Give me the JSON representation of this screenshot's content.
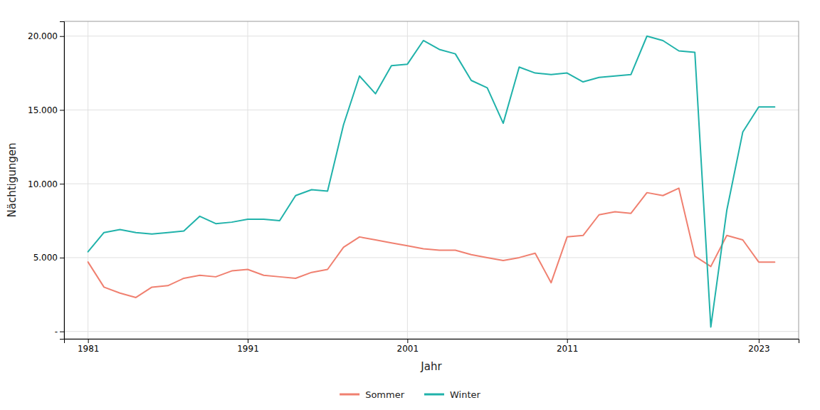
{
  "chart_data": {
    "type": "line",
    "xlabel": "Jahr",
    "ylabel": "Nächtigungen",
    "x": [
      1981,
      1982,
      1983,
      1984,
      1985,
      1986,
      1987,
      1988,
      1989,
      1990,
      1991,
      1992,
      1993,
      1994,
      1995,
      1996,
      1997,
      1998,
      1999,
      2000,
      2001,
      2002,
      2003,
      2004,
      2005,
      2006,
      2007,
      2008,
      2009,
      2010,
      2011,
      2012,
      2013,
      2014,
      2015,
      2016,
      2017,
      2018,
      2019,
      2020,
      2021,
      2022,
      2023,
      2024
    ],
    "series": [
      {
        "name": "Sommer",
        "color": "#F08070",
        "values": [
          4700,
          3000,
          2600,
          2300,
          3000,
          3100,
          3600,
          3800,
          3700,
          4100,
          4200,
          3800,
          3700,
          3600,
          4000,
          4200,
          5700,
          6400,
          6200,
          6000,
          5800,
          5600,
          5500,
          5500,
          5200,
          5000,
          4800,
          5000,
          5300,
          3300,
          6400,
          6500,
          7900,
          8100,
          8000,
          9400,
          9200,
          9700,
          5100,
          4400,
          6500,
          6200,
          4700,
          4700
        ]
      },
      {
        "name": "Winter",
        "color": "#20B2AA",
        "values": [
          5400,
          6700,
          6900,
          6700,
          6600,
          6700,
          6800,
          7800,
          7300,
          7400,
          7600,
          7600,
          7500,
          9200,
          9600,
          9500,
          14000,
          17300,
          16100,
          18000,
          18100,
          19700,
          19100,
          18800,
          17000,
          16500,
          14100,
          17900,
          17500,
          17400,
          17500,
          16900,
          17200,
          17300,
          17400,
          20000,
          19700,
          19000,
          18900,
          300,
          8200,
          13500,
          15200,
          15200
        ]
      }
    ],
    "xlim": [
      1979.5,
      2025.5
    ],
    "xticks": [
      1981,
      1991,
      2001,
      2011,
      2023
    ],
    "ylim": [
      -500,
      21000
    ],
    "yticks": [
      {
        "value": 0,
        "label": "-"
      },
      {
        "value": 5000,
        "label": "5.000"
      },
      {
        "value": 10000,
        "label": "10.000"
      },
      {
        "value": 15000,
        "label": "15.000"
      },
      {
        "value": 20000,
        "label": "20.000"
      }
    ],
    "grid": true,
    "legend": "bottom"
  }
}
